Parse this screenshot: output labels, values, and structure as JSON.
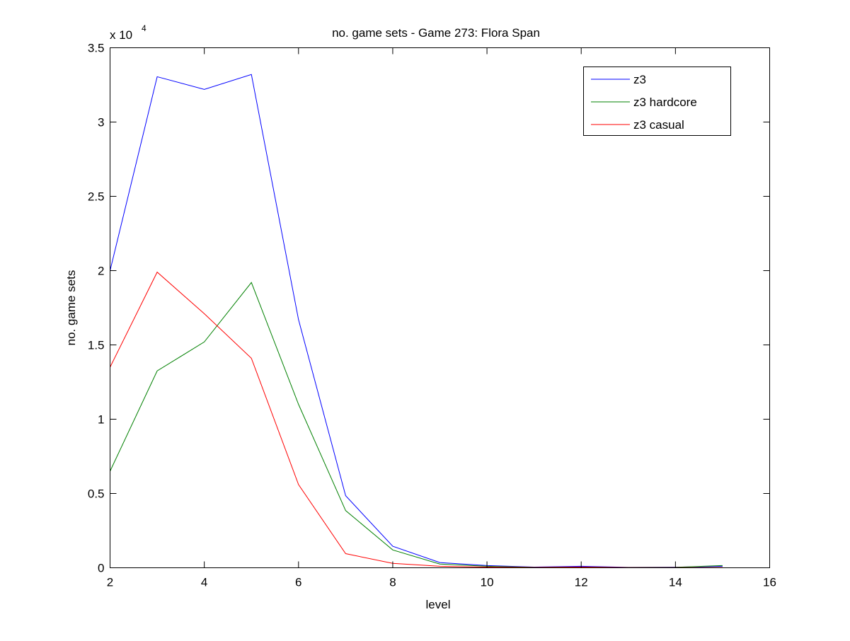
{
  "chart_data": {
    "type": "line",
    "title": "no. game sets - Game 273: Flora Span",
    "xlabel": "level",
    "ylabel": "no. game sets",
    "y_multiplier_label": "x 10",
    "y_multiplier_exponent": "4",
    "xlim": [
      2,
      16
    ],
    "ylim": [
      0,
      35000
    ],
    "xticks": [
      2,
      4,
      6,
      8,
      10,
      12,
      14,
      16
    ],
    "yticks": [
      0,
      5000,
      10000,
      15000,
      20000,
      25000,
      30000,
      35000
    ],
    "xtick_labels": [
      "2",
      "4",
      "6",
      "8",
      "10",
      "12",
      "14",
      "16"
    ],
    "ytick_labels": [
      "0",
      "0.5",
      "1",
      "1.5",
      "2",
      "2.5",
      "3",
      "3.5"
    ],
    "grid": false,
    "legend_position": "top-right",
    "x": [
      2,
      3,
      4,
      5,
      6,
      7,
      8,
      9,
      10,
      11,
      12,
      13,
      14,
      15
    ],
    "series": [
      {
        "name": "z3",
        "color": "#0000ff",
        "values": [
          20000,
          33050,
          32200,
          33200,
          16700,
          4850,
          1450,
          350,
          150,
          50,
          100,
          30,
          40,
          100
        ]
      },
      {
        "name": "z3 hardcore",
        "color": "#008000",
        "values": [
          6500,
          13250,
          15200,
          19200,
          11000,
          3850,
          1200,
          250,
          100,
          30,
          50,
          20,
          30,
          150
        ]
      },
      {
        "name": "z3 casual",
        "color": "#ff0000",
        "values": [
          13500,
          19900,
          17100,
          14100,
          5600,
          950,
          300,
          100,
          50,
          20,
          50,
          10,
          10,
          20
        ]
      }
    ]
  }
}
